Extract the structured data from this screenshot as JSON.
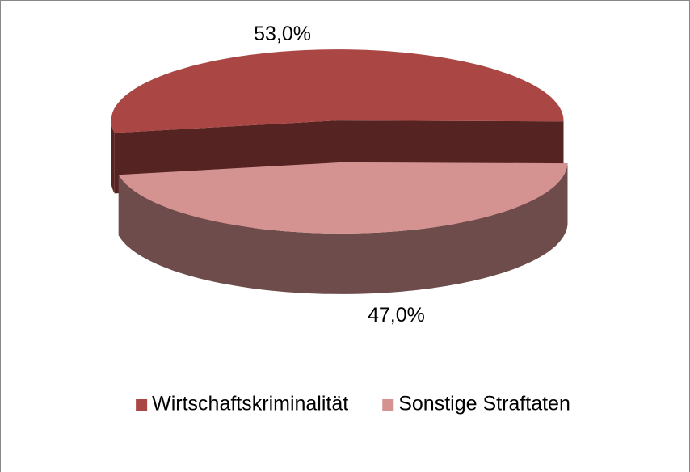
{
  "chart_data": {
    "type": "pie",
    "categories": [
      "Wirtschaftskriminalität",
      "Sonstige Straftaten"
    ],
    "values": [
      53,
      47
    ],
    "value_labels": [
      "53,0%",
      "47,0%"
    ],
    "colors": [
      "#aa4643",
      "#d49291"
    ],
    "legend": "bottom"
  }
}
